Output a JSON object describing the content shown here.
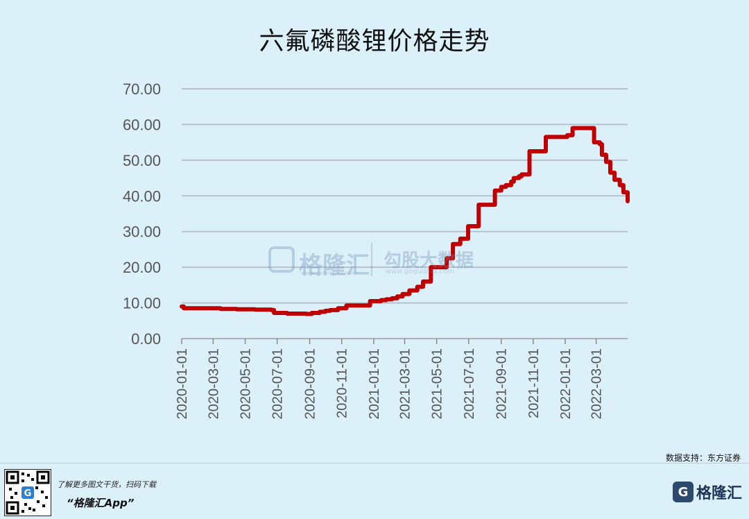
{
  "chart_data": {
    "type": "line",
    "title": "六氟磷酸锂价格走势",
    "xlabel": "",
    "ylabel": "",
    "ylim": [
      0,
      70
    ],
    "yticks": [
      "0.00",
      "10.00",
      "20.00",
      "30.00",
      "40.00",
      "50.00",
      "60.00",
      "70.00"
    ],
    "xticks": [
      "2020-01-01",
      "2020-03-01",
      "2020-05-01",
      "2020-07-01",
      "2020-09-01",
      "2020-11-01",
      "2021-01-01",
      "2021-03-01",
      "2021-05-01",
      "2021-07-01",
      "2021-09-01",
      "2021-11-01",
      "2022-01-01",
      "2022-03-01"
    ],
    "xlim": [
      "2020-01-01",
      "2022-04-30"
    ],
    "grid": true,
    "color": "#c00000",
    "series": [
      {
        "x": [
          "2020-01-01",
          "2020-01-05",
          "2020-02-15",
          "2020-03-15",
          "2020-04-15",
          "2020-05-10",
          "2020-05-20",
          "2020-06-20",
          "2020-06-25",
          "2020-07-20",
          "2020-08-05",
          "2020-08-25",
          "2020-09-05",
          "2020-09-20",
          "2020-10-01",
          "2020-10-10",
          "2020-10-25",
          "2020-11-10",
          "2020-12-05",
          "2020-12-25",
          "2021-01-15",
          "2021-01-25",
          "2021-02-05",
          "2021-02-15",
          "2021-02-25",
          "2021-03-10",
          "2021-03-25",
          "2021-04-05",
          "2021-04-20",
          "2021-05-01",
          "2021-05-10",
          "2021-05-20",
          "2021-06-01",
          "2021-06-15",
          "2021-06-30",
          "2021-07-20",
          "2021-08-05",
          "2021-08-20",
          "2021-09-01",
          "2021-09-10",
          "2021-09-20",
          "2021-09-25",
          "2021-10-05",
          "2021-10-10",
          "2021-10-25",
          "2021-11-01",
          "2021-11-15",
          "2021-11-25",
          "2021-12-10",
          "2021-12-20",
          "2022-01-05",
          "2022-01-15",
          "2022-02-05",
          "2022-02-10",
          "2022-02-25",
          "2022-03-08",
          "2022-03-12",
          "2022-03-20",
          "2022-03-28",
          "2022-04-05",
          "2022-04-15",
          "2022-04-22",
          "2022-04-30"
        ],
        "y": [
          9.0,
          8.5,
          8.5,
          8.3,
          8.2,
          8.2,
          8.1,
          8.0,
          7.2,
          7.0,
          7.0,
          6.9,
          7.2,
          7.5,
          7.8,
          8.0,
          8.5,
          9.3,
          9.3,
          10.5,
          10.8,
          11.0,
          11.3,
          11.8,
          12.5,
          13.5,
          14.5,
          16.0,
          20.0,
          20.0,
          20.0,
          22.5,
          26.5,
          28.0,
          31.5,
          37.5,
          37.5,
          41.5,
          42.5,
          43.0,
          44.0,
          45.0,
          45.5,
          46.0,
          52.5,
          52.5,
          52.5,
          56.5,
          56.5,
          56.5,
          57.0,
          59.0,
          59.0,
          59.0,
          55.0,
          54.5,
          51.5,
          49.5,
          46.5,
          44.5,
          43.0,
          41.0,
          38.5
        ]
      }
    ]
  },
  "footer": {
    "source": "数据支持：东方证券",
    "promo": "了解更多图文干货，扫码下载",
    "app": "“格隆汇App”",
    "logo_mark": "G",
    "logo_text": "格隆汇"
  },
  "watermark": {
    "brand": "格隆汇",
    "brand_url": "www.gelonghui.com",
    "partner": "勾股大数据",
    "partner_url": "www.gogudata.com"
  }
}
